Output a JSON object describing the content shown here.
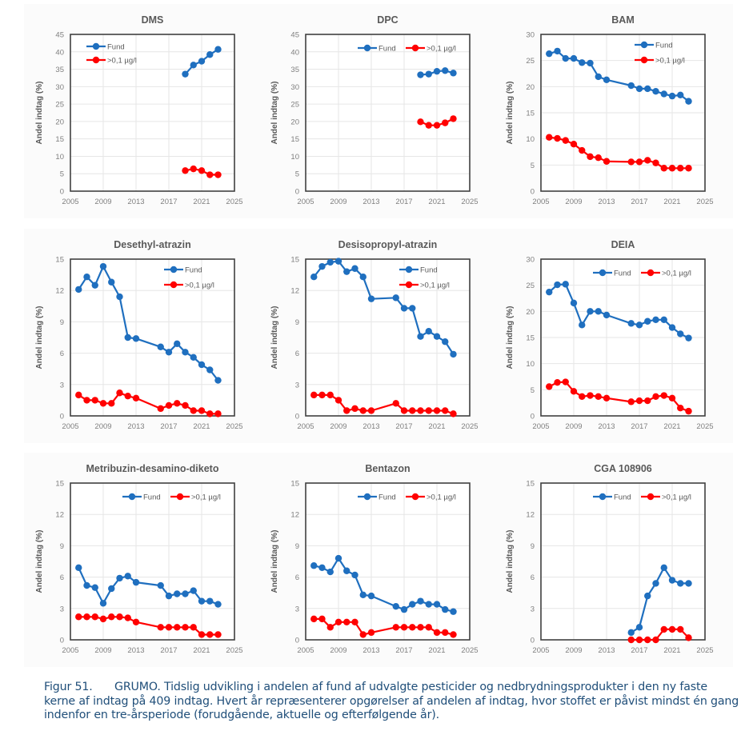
{
  "figure": {
    "caption_label": "Figur 51.",
    "caption_text": "GRUMO. Tidslig udvikling i andelen af fund af udvalgte pesticider og nedbrydningsprodukter i den ny faste kerne af indtag på 409 indtag. Hvert år repræsenterer opgørelser af andelen af indtag, hvor stoffet er påvist mindst én gang indenfor en tre-årsperiode (forudgående, aktuelle og efterfølgende år)."
  },
  "colors": {
    "fund": "#1f6fbf",
    "over": "#ff0000",
    "grid": "#e6e6e6",
    "axis_text": "#7f7f7f",
    "title": "#595959"
  },
  "chart_data": [
    {
      "type": "line",
      "title": "DMS",
      "xlabel": "",
      "ylabel": "Andel indtag (%)",
      "xlim": [
        2005,
        2025
      ],
      "ylim": [
        0,
        45
      ],
      "xticks": [
        2005,
        2009,
        2013,
        2017,
        2021,
        2025
      ],
      "yticks": [
        0,
        5,
        10,
        15,
        20,
        25,
        30,
        35,
        40,
        45
      ],
      "grid": true,
      "legend": "top-left-stacked",
      "series": [
        {
          "name": "Fund",
          "color": "#1f6fbf",
          "x": [
            2019,
            2020,
            2021,
            2022,
            2023
          ],
          "y": [
            33.6,
            36.2,
            37.3,
            39.2,
            40.7
          ]
        },
        {
          "name": ">0,1 µg/l",
          "color": "#ff0000",
          "x": [
            2019,
            2020,
            2021,
            2022,
            2023
          ],
          "y": [
            5.9,
            6.4,
            5.9,
            4.7,
            4.7
          ]
        }
      ]
    },
    {
      "type": "line",
      "title": "DPC",
      "xlabel": "",
      "ylabel": "Andel indtag (%)",
      "xlim": [
        2005,
        2025
      ],
      "ylim": [
        0,
        45
      ],
      "xticks": [
        2005,
        2009,
        2013,
        2017,
        2021,
        2025
      ],
      "yticks": [
        0,
        5,
        10,
        15,
        20,
        25,
        30,
        35,
        40,
        45
      ],
      "grid": true,
      "legend": "top-right-inline",
      "series": [
        {
          "name": "Fund",
          "color": "#1f6fbf",
          "x": [
            2019,
            2020,
            2021,
            2022,
            2023
          ],
          "y": [
            33.4,
            33.6,
            34.4,
            34.6,
            33.9
          ]
        },
        {
          "name": ">0,1 µg/l",
          "color": "#ff0000",
          "x": [
            2019,
            2020,
            2021,
            2022,
            2023
          ],
          "y": [
            19.9,
            18.9,
            18.9,
            19.6,
            20.8
          ]
        }
      ]
    },
    {
      "type": "line",
      "title": "BAM",
      "xlabel": "",
      "ylabel": "Andel indtag (%)",
      "xlim": [
        2005,
        2025
      ],
      "ylim": [
        0,
        30
      ],
      "xticks": [
        2005,
        2009,
        2013,
        2017,
        2021,
        2025
      ],
      "yticks": [
        0,
        5,
        10,
        15,
        20,
        25,
        30
      ],
      "grid": true,
      "legend": "top-right-stacked",
      "series": [
        {
          "name": "Fund",
          "color": "#1f6fbf",
          "x": [
            2006,
            2007,
            2008,
            2009,
            2010,
            2011,
            2012,
            2013,
            2016,
            2017,
            2018,
            2019,
            2020,
            2021,
            2022,
            2023
          ],
          "y": [
            26.3,
            26.8,
            25.4,
            25.4,
            24.6,
            24.5,
            21.9,
            21.3,
            20.2,
            19.6,
            19.6,
            19.1,
            18.6,
            18.2,
            18.4,
            17.2
          ]
        },
        {
          "name": ">0,1 µg/l",
          "color": "#ff0000",
          "x": [
            2006,
            2007,
            2008,
            2009,
            2010,
            2011,
            2012,
            2013,
            2016,
            2017,
            2018,
            2019,
            2020,
            2021,
            2022,
            2023
          ],
          "y": [
            10.3,
            10.1,
            9.7,
            9.0,
            7.8,
            6.6,
            6.4,
            5.7,
            5.6,
            5.6,
            5.9,
            5.4,
            4.4,
            4.4,
            4.4,
            4.4
          ]
        }
      ]
    },
    {
      "type": "line",
      "title": "Desethyl-atrazin",
      "xlabel": "",
      "ylabel": "Andel indtag (%)",
      "xlim": [
        2005,
        2025
      ],
      "ylim": [
        0,
        15
      ],
      "xticks": [
        2005,
        2009,
        2013,
        2017,
        2021,
        2025
      ],
      "yticks": [
        0,
        3,
        6,
        9,
        12,
        15
      ],
      "grid": true,
      "legend": "top-right-stacked",
      "series": [
        {
          "name": "Fund",
          "color": "#1f6fbf",
          "x": [
            2006,
            2007,
            2008,
            2009,
            2010,
            2011,
            2012,
            2013,
            2016,
            2017,
            2018,
            2019,
            2020,
            2021,
            2022,
            2023
          ],
          "y": [
            12.1,
            13.3,
            12.5,
            14.3,
            12.8,
            11.4,
            7.5,
            7.4,
            6.6,
            6.1,
            6.9,
            6.1,
            5.6,
            4.9,
            4.4,
            3.4
          ]
        },
        {
          "name": ">0,1 µg/l",
          "color": "#ff0000",
          "x": [
            2006,
            2007,
            2008,
            2009,
            2010,
            2011,
            2012,
            2013,
            2016,
            2017,
            2018,
            2019,
            2020,
            2021,
            2022,
            2023
          ],
          "y": [
            2.0,
            1.5,
            1.5,
            1.2,
            1.2,
            2.2,
            1.9,
            1.7,
            0.7,
            1.0,
            1.2,
            1.0,
            0.5,
            0.5,
            0.2,
            0.2
          ]
        }
      ]
    },
    {
      "type": "line",
      "title": "Desisopropyl-atrazin",
      "xlabel": "",
      "ylabel": "Andel indtag (%)",
      "xlim": [
        2005,
        2025
      ],
      "ylim": [
        0,
        15
      ],
      "xticks": [
        2005,
        2009,
        2013,
        2017,
        2021,
        2025
      ],
      "yticks": [
        0,
        3,
        6,
        9,
        12,
        15
      ],
      "grid": true,
      "legend": "top-right-stacked",
      "series": [
        {
          "name": "Fund",
          "color": "#1f6fbf",
          "x": [
            2006,
            2007,
            2008,
            2009,
            2010,
            2011,
            2012,
            2013,
            2016,
            2017,
            2018,
            2019,
            2020,
            2021,
            2022,
            2023
          ],
          "y": [
            13.3,
            14.3,
            14.7,
            14.8,
            13.8,
            14.1,
            13.3,
            11.2,
            11.3,
            10.3,
            10.3,
            7.6,
            8.1,
            7.6,
            7.1,
            5.9
          ]
        },
        {
          "name": ">0,1 µg/l",
          "color": "#ff0000",
          "x": [
            2006,
            2007,
            2008,
            2009,
            2010,
            2011,
            2012,
            2013,
            2016,
            2017,
            2018,
            2019,
            2020,
            2021,
            2022,
            2023
          ],
          "y": [
            2.0,
            2.0,
            2.0,
            1.5,
            0.5,
            0.7,
            0.5,
            0.5,
            1.2,
            0.5,
            0.5,
            0.5,
            0.5,
            0.5,
            0.5,
            0.2
          ]
        }
      ]
    },
    {
      "type": "line",
      "title": "DEIA",
      "xlabel": "",
      "ylabel": "Andel indtag (%)",
      "xlim": [
        2005,
        2025
      ],
      "ylim": [
        0,
        30
      ],
      "xticks": [
        2005,
        2009,
        2013,
        2017,
        2021,
        2025
      ],
      "yticks": [
        0,
        5,
        10,
        15,
        20,
        25,
        30
      ],
      "grid": true,
      "legend": "top-right-inline",
      "series": [
        {
          "name": "Fund",
          "color": "#1f6fbf",
          "x": [
            2006,
            2007,
            2008,
            2009,
            2010,
            2011,
            2012,
            2013,
            2016,
            2017,
            2018,
            2019,
            2020,
            2021,
            2022,
            2023
          ],
          "y": [
            23.7,
            25.1,
            25.2,
            21.6,
            17.4,
            20.0,
            20.0,
            19.3,
            17.7,
            17.4,
            18.1,
            18.4,
            18.4,
            16.9,
            15.7,
            14.9
          ]
        },
        {
          "name": ">0,1 µg/l",
          "color": "#ff0000",
          "x": [
            2006,
            2007,
            2008,
            2009,
            2010,
            2011,
            2012,
            2013,
            2016,
            2017,
            2018,
            2019,
            2020,
            2021,
            2022,
            2023
          ],
          "y": [
            5.6,
            6.4,
            6.5,
            4.7,
            3.7,
            3.9,
            3.7,
            3.4,
            2.7,
            2.9,
            2.9,
            3.7,
            3.9,
            3.4,
            1.5,
            0.9
          ]
        }
      ]
    },
    {
      "type": "line",
      "title": "Metribuzin-desamino-diketo",
      "xlabel": "",
      "ylabel": "Andel indtag (%)",
      "xlim": [
        2005,
        2025
      ],
      "ylim": [
        0,
        15
      ],
      "xticks": [
        2005,
        2009,
        2013,
        2017,
        2021,
        2025
      ],
      "yticks": [
        0,
        3,
        6,
        9,
        12,
        15
      ],
      "grid": true,
      "legend": "top-right-inline",
      "series": [
        {
          "name": "Fund",
          "color": "#1f6fbf",
          "x": [
            2006,
            2007,
            2008,
            2009,
            2010,
            2011,
            2012,
            2013,
            2016,
            2017,
            2018,
            2019,
            2020,
            2021,
            2022,
            2023
          ],
          "y": [
            6.9,
            5.2,
            5.0,
            3.5,
            4.9,
            5.9,
            6.1,
            5.5,
            5.2,
            4.2,
            4.4,
            4.4,
            4.7,
            3.7,
            3.7,
            3.4
          ]
        },
        {
          "name": ">0,1 µg/l",
          "color": "#ff0000",
          "x": [
            2006,
            2007,
            2008,
            2009,
            2010,
            2011,
            2012,
            2013,
            2016,
            2017,
            2018,
            2019,
            2020,
            2021,
            2022,
            2023
          ],
          "y": [
            2.2,
            2.2,
            2.2,
            2.0,
            2.2,
            2.2,
            2.1,
            1.7,
            1.2,
            1.2,
            1.2,
            1.2,
            1.2,
            0.5,
            0.5,
            0.5
          ]
        }
      ]
    },
    {
      "type": "line",
      "title": "Bentazon",
      "xlabel": "",
      "ylabel": "Andel indtag (%)",
      "xlim": [
        2005,
        2025
      ],
      "ylim": [
        0,
        15
      ],
      "xticks": [
        2005,
        2009,
        2013,
        2017,
        2021,
        2025
      ],
      "yticks": [
        0,
        3,
        6,
        9,
        12,
        15
      ],
      "grid": true,
      "legend": "top-right-inline",
      "series": [
        {
          "name": "Fund",
          "color": "#1f6fbf",
          "x": [
            2006,
            2007,
            2008,
            2009,
            2010,
            2011,
            2012,
            2013,
            2016,
            2017,
            2018,
            2019,
            2020,
            2021,
            2022,
            2023
          ],
          "y": [
            7.1,
            6.9,
            6.5,
            7.8,
            6.6,
            6.2,
            4.3,
            4.2,
            3.2,
            2.9,
            3.4,
            3.7,
            3.4,
            3.4,
            2.9,
            2.7
          ]
        },
        {
          "name": ">0,1 µg/l",
          "color": "#ff0000",
          "x": [
            2006,
            2007,
            2008,
            2009,
            2010,
            2011,
            2012,
            2013,
            2016,
            2017,
            2018,
            2019,
            2020,
            2021,
            2022,
            2023
          ],
          "y": [
            2.0,
            2.0,
            1.2,
            1.7,
            1.7,
            1.7,
            0.5,
            0.7,
            1.2,
            1.2,
            1.2,
            1.2,
            1.2,
            0.7,
            0.7,
            0.5
          ]
        }
      ]
    },
    {
      "type": "line",
      "title": "CGA 108906",
      "xlabel": "",
      "ylabel": "Andel indtag (%)",
      "xlim": [
        2005,
        2025
      ],
      "ylim": [
        0,
        15
      ],
      "xticks": [
        2005,
        2009,
        2013,
        2017,
        2021,
        2025
      ],
      "yticks": [
        0,
        3,
        6,
        9,
        12,
        15
      ],
      "grid": true,
      "legend": "top-right-inline",
      "series": [
        {
          "name": "Fund",
          "color": "#1f6fbf",
          "x": [
            2016,
            2017,
            2018,
            2019,
            2020,
            2021,
            2022,
            2023
          ],
          "y": [
            0.7,
            1.2,
            4.2,
            5.4,
            6.9,
            5.7,
            5.4,
            5.4
          ]
        },
        {
          "name": ">0,1 µg/l",
          "color": "#ff0000",
          "x": [
            2016,
            2017,
            2018,
            2019,
            2020,
            2021,
            2022,
            2023
          ],
          "y": [
            0.0,
            0.0,
            0.0,
            0.0,
            1.0,
            1.0,
            1.0,
            0.2
          ]
        }
      ]
    }
  ]
}
